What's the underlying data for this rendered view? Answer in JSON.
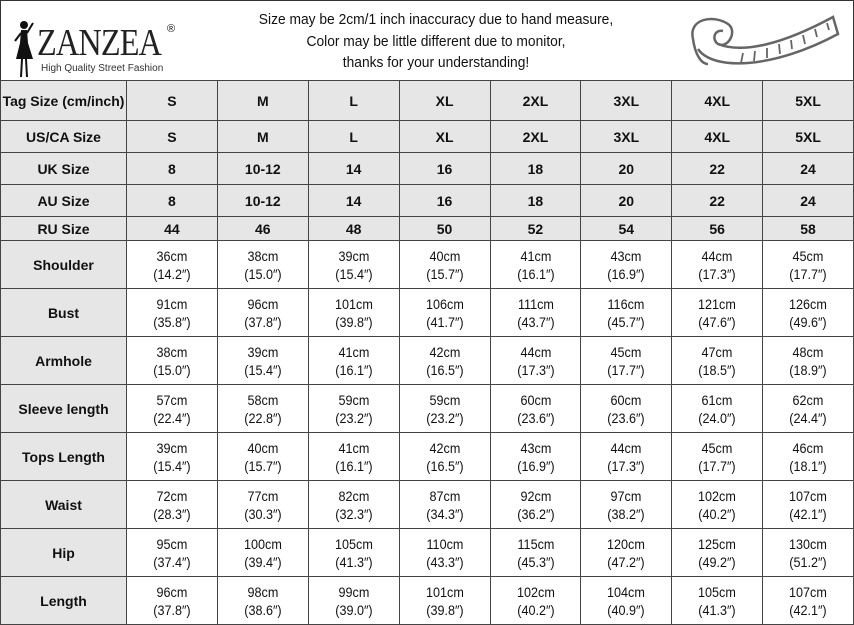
{
  "logo": {
    "brand": "ZANZEA",
    "registered": "®",
    "tagline": "High Quality Street Fashion"
  },
  "notice": [
    "Size may be 2cm/1 inch inaccuracy due to hand measure,",
    "Color may be little different due to monitor,",
    "thanks for your understanding!"
  ],
  "icons": {
    "logo_figure": "woman-silhouette-icon",
    "tape": "measuring-tape-icon"
  },
  "size_rows": [
    {
      "label": "Tag Size (cm/inch)",
      "values": [
        "S",
        "M",
        "L",
        "XL",
        "2XL",
        "3XL",
        "4XL",
        "5XL"
      ]
    },
    {
      "label": "US/CA Size",
      "values": [
        "S",
        "M",
        "L",
        "XL",
        "2XL",
        "3XL",
        "4XL",
        "5XL"
      ]
    },
    {
      "label": "UK Size",
      "values": [
        "8",
        "10-12",
        "14",
        "16",
        "18",
        "20",
        "22",
        "24"
      ]
    },
    {
      "label": "AU Size",
      "values": [
        "8",
        "10-12",
        "14",
        "16",
        "18",
        "20",
        "22",
        "24"
      ]
    },
    {
      "label": "RU Size",
      "values": [
        "44",
        "46",
        "48",
        "50",
        "52",
        "54",
        "56",
        "58"
      ]
    }
  ],
  "measure_rows": [
    {
      "label": "Shoulder",
      "cm": [
        "36cm",
        "38cm",
        "39cm",
        "40cm",
        "41cm",
        "43cm",
        "44cm",
        "45cm"
      ],
      "in": [
        "(14.2″)",
        "(15.0″)",
        "(15.4″)",
        "(15.7″)",
        "(16.1″)",
        "(16.9″)",
        "(17.3″)",
        "(17.7″)"
      ]
    },
    {
      "label": "Bust",
      "cm": [
        "91cm",
        "96cm",
        "101cm",
        "106cm",
        "111cm",
        "116cm",
        "121cm",
        "126cm"
      ],
      "in": [
        "(35.8″)",
        "(37.8″)",
        "(39.8″)",
        "(41.7″)",
        "(43.7″)",
        "(45.7″)",
        "(47.6″)",
        "(49.6″)"
      ]
    },
    {
      "label": "Armhole",
      "cm": [
        "38cm",
        "39cm",
        "41cm",
        "42cm",
        "44cm",
        "45cm",
        "47cm",
        "48cm"
      ],
      "in": [
        "(15.0″)",
        "(15.4″)",
        "(16.1″)",
        "(16.5″)",
        "(17.3″)",
        "(17.7″)",
        "(18.5″)",
        "(18.9″)"
      ]
    },
    {
      "label": "Sleeve length",
      "cm": [
        "57cm",
        "58cm",
        "59cm",
        "59cm",
        "60cm",
        "60cm",
        "61cm",
        "62cm"
      ],
      "in": [
        "(22.4″)",
        "(22.8″)",
        "(23.2″)",
        "(23.2″)",
        "(23.6″)",
        "(23.6″)",
        "(24.0″)",
        "(24.4″)"
      ]
    },
    {
      "label": "Tops Length",
      "cm": [
        "39cm",
        "40cm",
        "41cm",
        "42cm",
        "43cm",
        "44cm",
        "45cm",
        "46cm"
      ],
      "in": [
        "(15.4″)",
        "(15.7″)",
        "(16.1″)",
        "(16.5″)",
        "(16.9″)",
        "(17.3″)",
        "(17.7″)",
        "(18.1″)"
      ]
    },
    {
      "label": "Waist",
      "cm": [
        "72cm",
        "77cm",
        "82cm",
        "87cm",
        "92cm",
        "97cm",
        "102cm",
        "107cm"
      ],
      "in": [
        "(28.3″)",
        "(30.3″)",
        "(32.3″)",
        "(34.3″)",
        "(36.2″)",
        "(38.2″)",
        "(40.2″)",
        "(42.1″)"
      ]
    },
    {
      "label": "Hip",
      "cm": [
        "95cm",
        "100cm",
        "105cm",
        "110cm",
        "115cm",
        "120cm",
        "125cm",
        "130cm"
      ],
      "in": [
        "(37.4″)",
        "(39.4″)",
        "(41.3″)",
        "(43.3″)",
        "(45.3″)",
        "(47.2″)",
        "(49.2″)",
        "(51.2″)"
      ]
    },
    {
      "label": "Length",
      "cm": [
        "96cm",
        "98cm",
        "99cm",
        "101cm",
        "102cm",
        "104cm",
        "105cm",
        "107cm"
      ],
      "in": [
        "(37.8″)",
        "(38.6″)",
        "(39.0″)",
        "(39.8″)",
        "(40.2″)",
        "(40.9″)",
        "(41.3″)",
        "(42.1″)"
      ]
    }
  ]
}
